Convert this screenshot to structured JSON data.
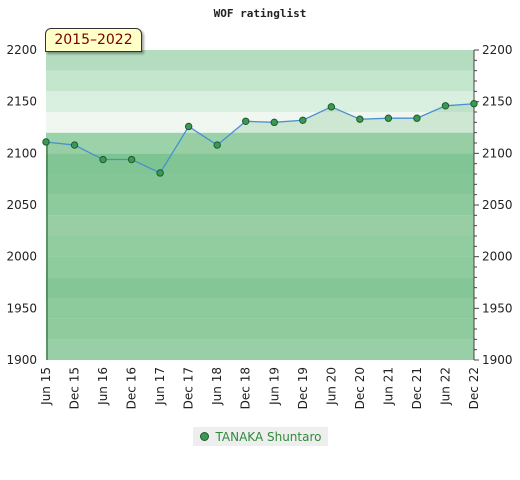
{
  "chart_data": {
    "type": "line",
    "title": "WOF ratinglist",
    "period_label": "2015–2022",
    "ylim": [
      1900,
      2200
    ],
    "y_ticks": [
      1900,
      1950,
      2000,
      2050,
      2100,
      2150,
      2200
    ],
    "categories": [
      "Jun 15",
      "Dec 15",
      "Jun 16",
      "Dec 16",
      "Jun 17",
      "Dec 17",
      "Jun 18",
      "Dec 18",
      "Jun 19",
      "Dec 19",
      "Jun 20",
      "Dec 20",
      "Jun 21",
      "Dec 21",
      "Jun 22",
      "Dec 22"
    ],
    "series": [
      {
        "name": "TANAKA Shuntaro",
        "values": [
          2111,
          2108,
          2094,
          2094,
          2081,
          2126,
          2108,
          2131,
          2130,
          2132,
          2145,
          2133,
          2134,
          2134,
          2146,
          2148
        ]
      }
    ],
    "legend_position": "bottom",
    "colors": {
      "line": "#4a8fd0",
      "marker_fill": "#3a9a55",
      "marker_stroke": "#1f5a2c",
      "area_fill": "#8fc99a"
    }
  }
}
